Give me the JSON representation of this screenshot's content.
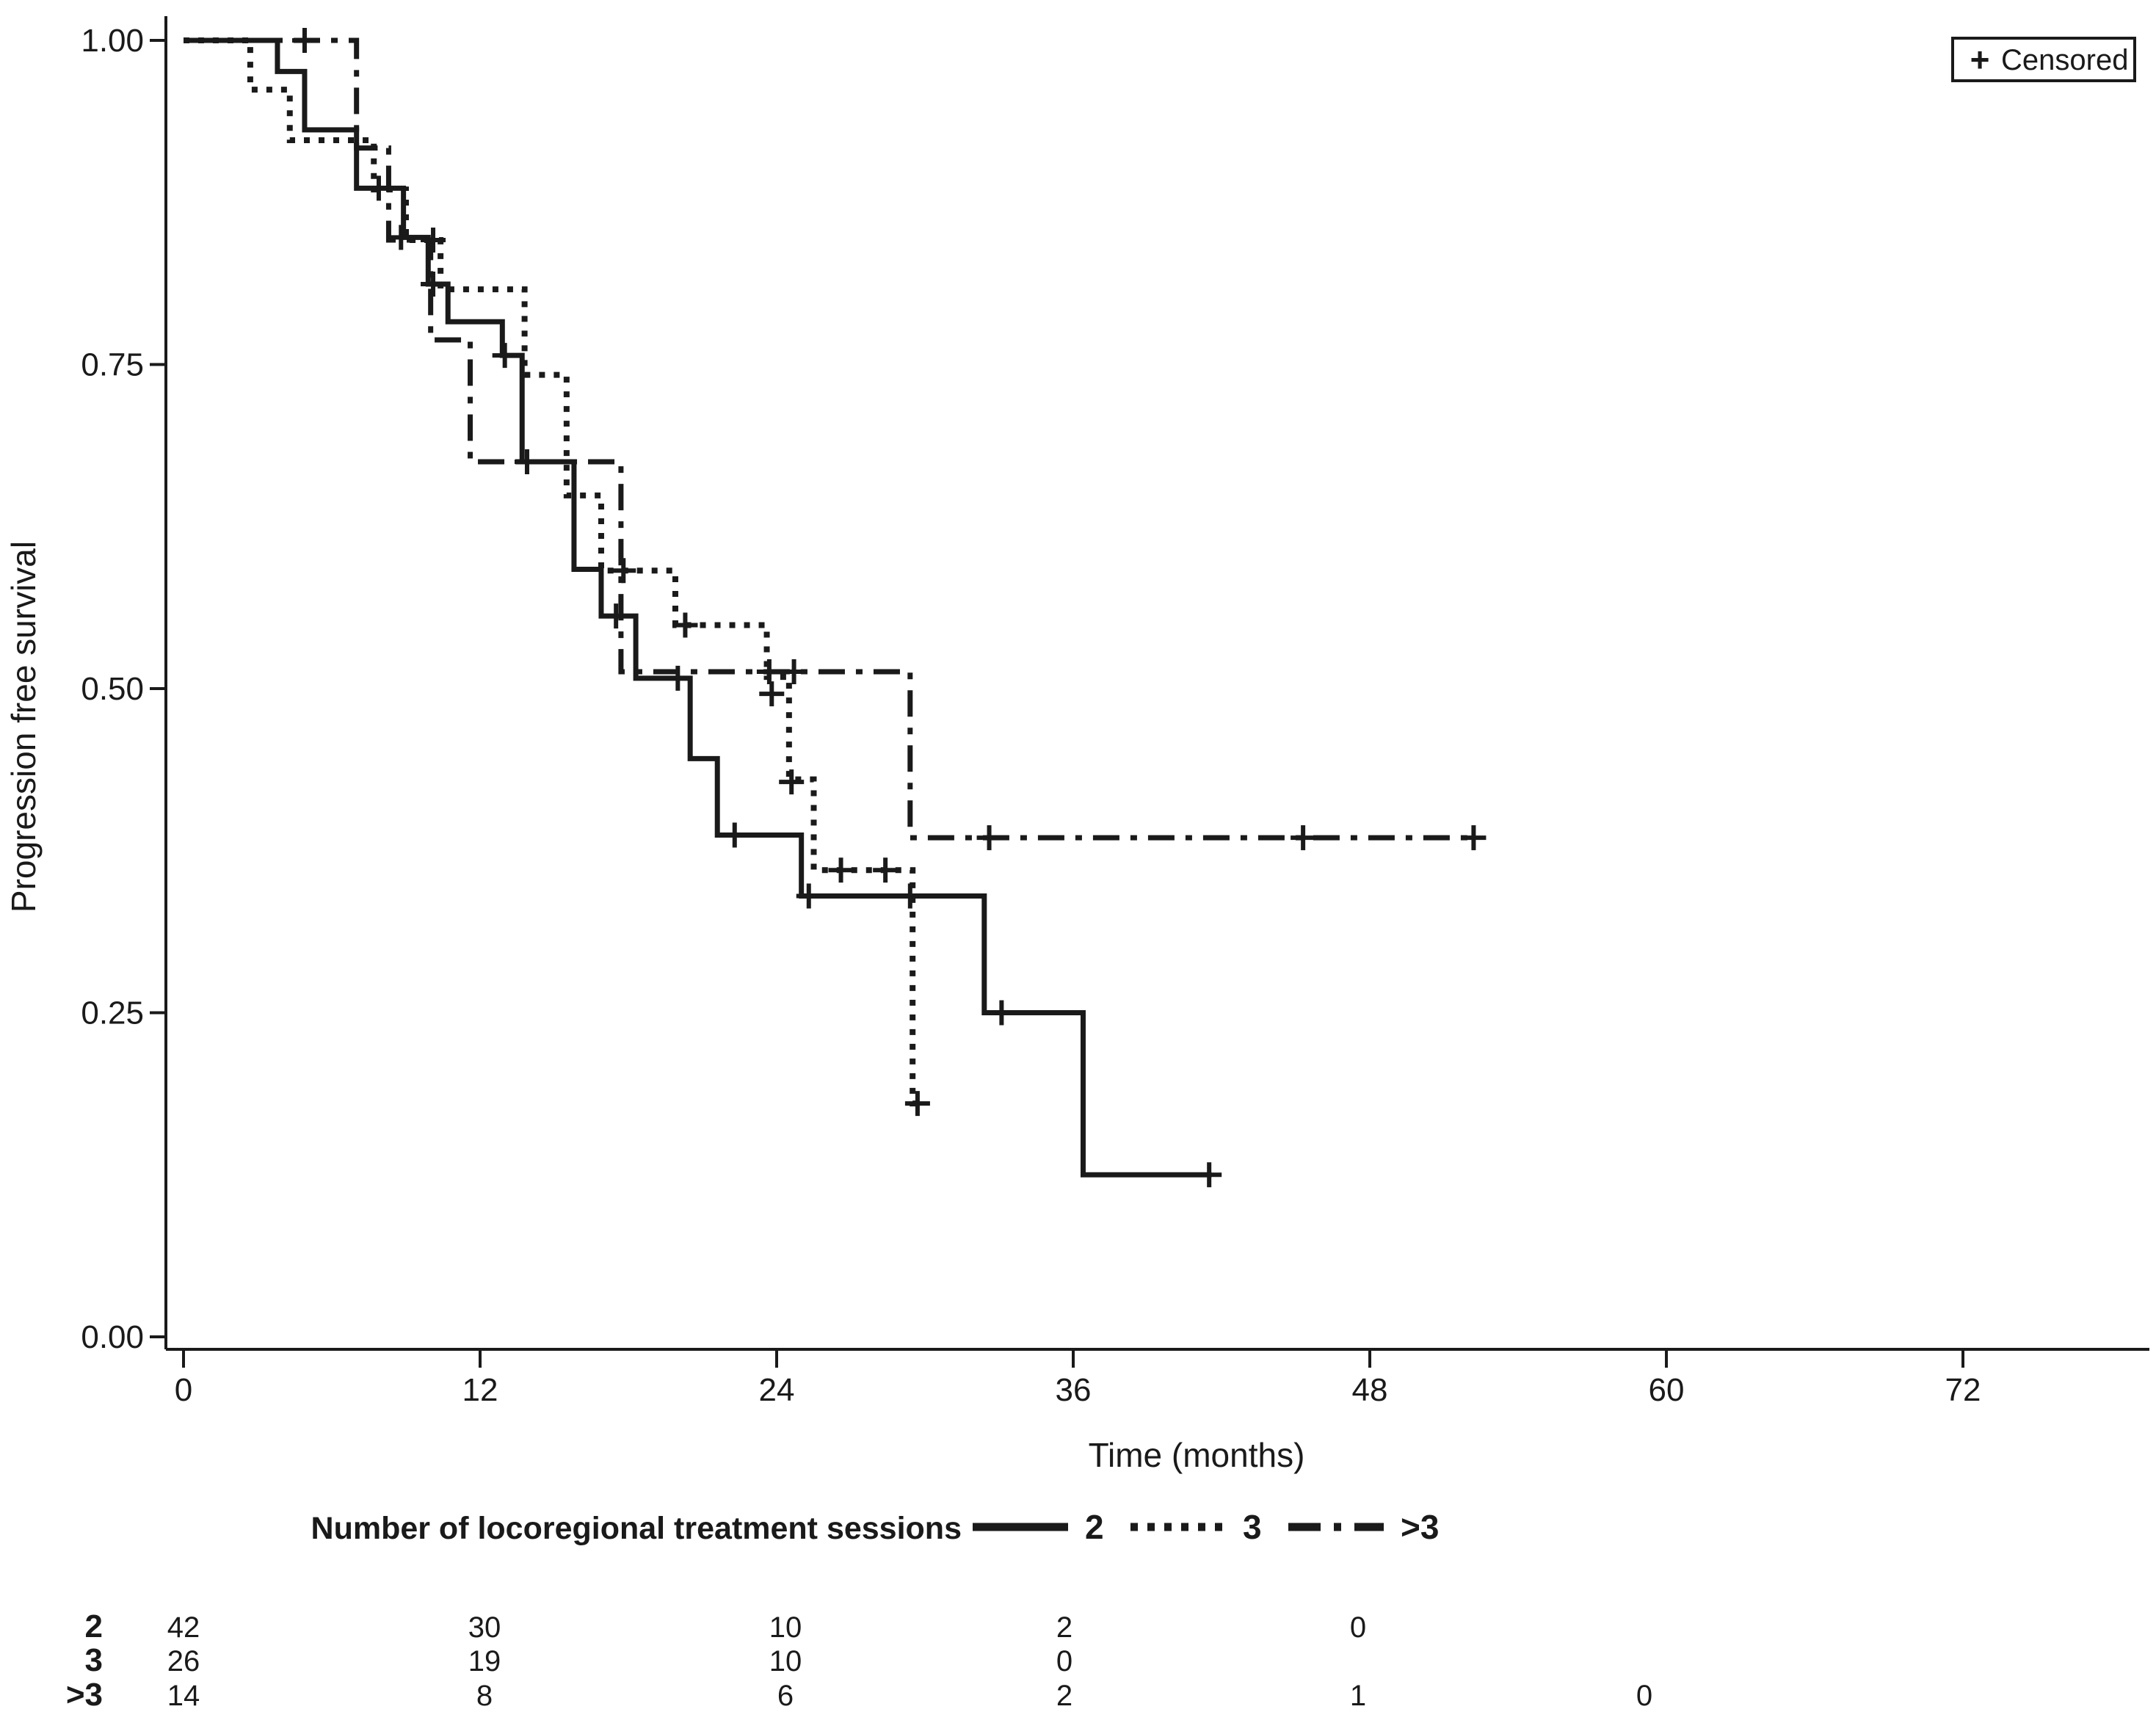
{
  "chart_data": {
    "type": "line",
    "subtype": "kaplan-meier-step",
    "title": "",
    "xlabel": "Time (months)",
    "ylabel": "Progression free survival",
    "xlim": [
      0,
      79.5
    ],
    "ylim": [
      0,
      1
    ],
    "grid": false,
    "xticks": [
      0,
      12,
      24,
      36,
      48,
      60,
      72
    ],
    "yticks": [
      {
        "v": 1.0,
        "label": "1.00"
      },
      {
        "v": 0.75,
        "label": "0.75"
      },
      {
        "v": 0.5,
        "label": "0.50"
      },
      {
        "v": 0.25,
        "label": "0.25"
      },
      {
        "v": 0.0,
        "label": "0.00"
      }
    ],
    "censored_legend": {
      "marker": "+",
      "label": "Censored"
    },
    "legend_title": "Number of locoregional treatment sessions",
    "legend_position": "bottom",
    "colors": {
      "line": "#1a1a1a",
      "text": "#1a1a1a",
      "background": "#ffffff"
    },
    "series": [
      {
        "name": "2",
        "line_style": "solid",
        "steps": [
          [
            0,
            1.0
          ],
          [
            3.8,
            0.976
          ],
          [
            4.9,
            0.931
          ],
          [
            7.0,
            0.886
          ],
          [
            8.9,
            0.848
          ],
          [
            9.9,
            0.812
          ],
          [
            10.7,
            0.783
          ],
          [
            12.9,
            0.757
          ],
          [
            13.7,
            0.675
          ],
          [
            15.8,
            0.592
          ],
          [
            16.9,
            0.556
          ],
          [
            18.3,
            0.508
          ],
          [
            20.5,
            0.446
          ],
          [
            21.6,
            0.387
          ],
          [
            25.0,
            0.34
          ],
          [
            32.4,
            0.25
          ],
          [
            36.4,
            0.125
          ]
        ],
        "end_time": 41.6,
        "censor_marks": [
          [
            7.9,
            0.886
          ],
          [
            8.8,
            0.848
          ],
          [
            10.1,
            0.812
          ],
          [
            13.0,
            0.757
          ],
          [
            13.9,
            0.675
          ],
          [
            17.5,
            0.556
          ],
          [
            20.0,
            0.508
          ],
          [
            22.3,
            0.387
          ],
          [
            25.3,
            0.34
          ],
          [
            29.4,
            0.34
          ],
          [
            33.1,
            0.25
          ],
          [
            41.5,
            0.125
          ]
        ]
      },
      {
        "name": "3",
        "line_style": "dotted",
        "steps": [
          [
            0,
            1.0
          ],
          [
            2.7,
            0.962
          ],
          [
            4.3,
            0.923
          ],
          [
            7.7,
            0.885
          ],
          [
            9.0,
            0.846
          ],
          [
            10.4,
            0.808
          ],
          [
            13.8,
            0.742
          ],
          [
            15.5,
            0.649
          ],
          [
            16.9,
            0.591
          ],
          [
            19.9,
            0.549
          ],
          [
            23.6,
            0.509
          ],
          [
            24.5,
            0.43
          ],
          [
            25.5,
            0.36
          ],
          [
            29.5,
            0.18
          ]
        ],
        "end_time": 30.0,
        "censor_marks": [
          [
            10.1,
            0.846
          ],
          [
            17.8,
            0.591
          ],
          [
            20.3,
            0.549
          ],
          [
            23.8,
            0.496
          ],
          [
            24.6,
            0.428
          ],
          [
            26.6,
            0.36
          ],
          [
            28.4,
            0.36
          ],
          [
            29.7,
            0.18
          ]
        ]
      },
      {
        "name": ">3",
        "line_style": "dashdot",
        "steps": [
          [
            0,
            1.0
          ],
          [
            7.0,
            0.917
          ],
          [
            8.3,
            0.846
          ],
          [
            10.0,
            0.769
          ],
          [
            11.6,
            0.675
          ],
          [
            17.7,
            0.513
          ],
          [
            29.4,
            0.385
          ]
        ],
        "end_time": 52.3,
        "censor_marks": [
          [
            4.9,
            1.0
          ],
          [
            23.7,
            0.513
          ],
          [
            24.7,
            0.513
          ],
          [
            32.6,
            0.385
          ],
          [
            45.3,
            0.385
          ],
          [
            52.2,
            0.385
          ]
        ]
      }
    ],
    "at_risk_table": {
      "time_points": [
        0,
        12,
        24,
        36,
        48,
        60
      ],
      "rows": [
        {
          "label": "2",
          "counts": [
            42,
            30,
            10,
            2,
            0,
            null
          ]
        },
        {
          "label": "3",
          "counts": [
            26,
            19,
            10,
            0,
            null,
            null
          ]
        },
        {
          "label": ">3",
          "counts": [
            14,
            8,
            6,
            2,
            1,
            0
          ]
        }
      ]
    }
  }
}
